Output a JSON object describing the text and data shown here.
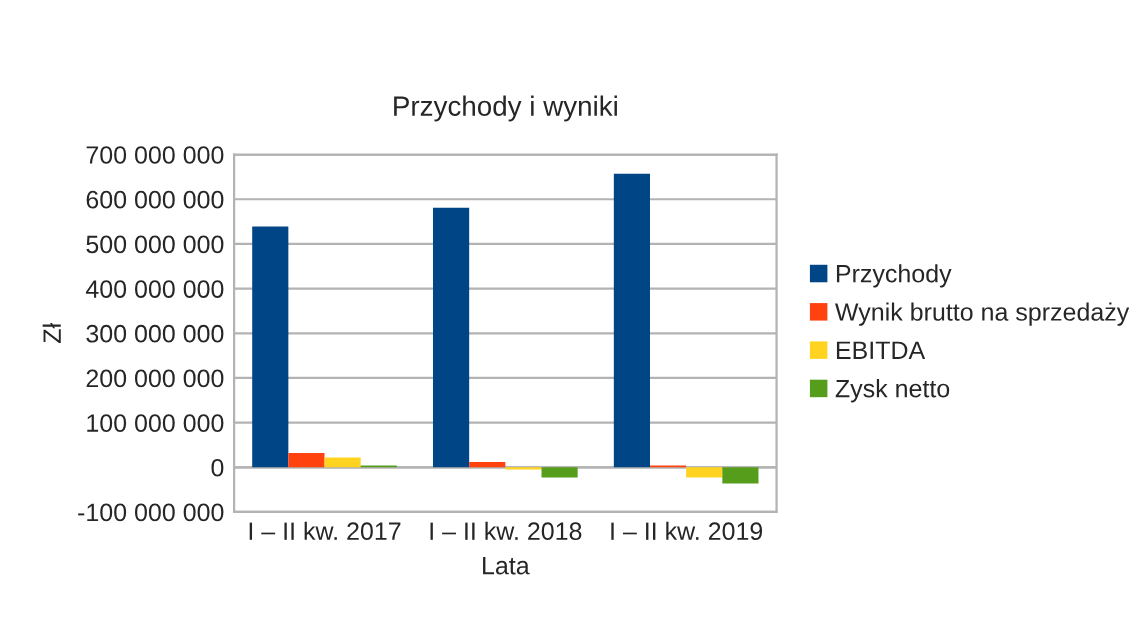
{
  "chart_data": {
    "type": "bar",
    "title": "Przychody i wyniki",
    "xlabel": "Lata",
    "ylabel": "Zł",
    "categories": [
      "I – II kw. 2017",
      "I – II kw. 2018",
      "I – II kw. 2019"
    ],
    "series": [
      {
        "name": "Przychody",
        "color": "#004586",
        "values": [
          539000000,
          581000000,
          657000000
        ]
      },
      {
        "name": "Wynik brutto na sprzedaży",
        "color": "#ff420e",
        "values": [
          32000000,
          12000000,
          4000000
        ]
      },
      {
        "name": "EBITDA",
        "color": "#ffd320",
        "values": [
          22000000,
          -5000000,
          -23000000
        ]
      },
      {
        "name": "Zysk netto",
        "color": "#579d1c",
        "values": [
          4000000,
          -23000000,
          -36000000
        ]
      }
    ],
    "ylim": [
      -100000000,
      700000000
    ],
    "yticks": [
      {
        "value": -100000000,
        "label": "-100 000 000"
      },
      {
        "value": 0,
        "label": "0"
      },
      {
        "value": 100000000,
        "label": "100 000 000"
      },
      {
        "value": 200000000,
        "label": "200 000 000"
      },
      {
        "value": 300000000,
        "label": "300 000 000"
      },
      {
        "value": 400000000,
        "label": "400 000 000"
      },
      {
        "value": 500000000,
        "label": "500 000 000"
      },
      {
        "value": 600000000,
        "label": "600 000 000"
      },
      {
        "value": 700000000,
        "label": "700 000 000"
      }
    ],
    "grid": "y",
    "legend": "right"
  }
}
